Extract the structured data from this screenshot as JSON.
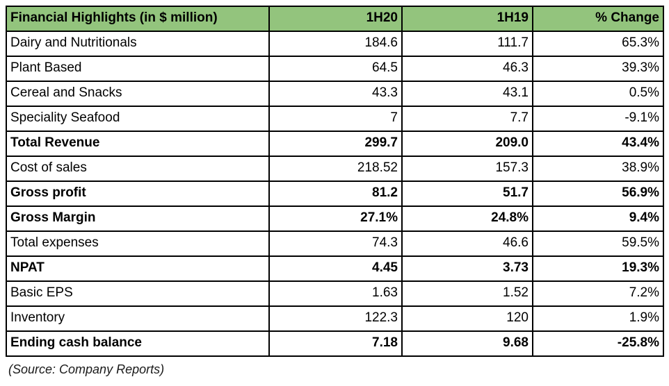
{
  "chart_data": {
    "type": "table",
    "title": "Financial Highlights (in $ million)",
    "columns": [
      "Financial Highlights (in $ million)",
      "1H20",
      "1H19",
      "% Change"
    ],
    "rows": [
      {
        "label": "Dairy and Nutritionals",
        "h1_2020": "184.6",
        "h1_2019": "111.7",
        "pct_change": "65.3%",
        "bold": false
      },
      {
        "label": "Plant Based",
        "h1_2020": "64.5",
        "h1_2019": "46.3",
        "pct_change": "39.3%",
        "bold": false
      },
      {
        "label": "Cereal and Snacks",
        "h1_2020": "43.3",
        "h1_2019": "43.1",
        "pct_change": "0.5%",
        "bold": false
      },
      {
        "label": "Speciality Seafood",
        "h1_2020": "7",
        "h1_2019": "7.7",
        "pct_change": "-9.1%",
        "bold": false
      },
      {
        "label": "Total Revenue",
        "h1_2020": "299.7",
        "h1_2019": "209.0",
        "pct_change": "43.4%",
        "bold": true
      },
      {
        "label": "Cost of sales",
        "h1_2020": "218.52",
        "h1_2019": "157.3",
        "pct_change": "38.9%",
        "bold": false
      },
      {
        "label": "Gross profit",
        "h1_2020": "81.2",
        "h1_2019": "51.7",
        "pct_change": "56.9%",
        "bold": true
      },
      {
        "label": "Gross Margin",
        "h1_2020": "27.1%",
        "h1_2019": "24.8%",
        "pct_change": "9.4%",
        "bold": true
      },
      {
        "label": "Total expenses",
        "h1_2020": "74.3",
        "h1_2019": "46.6",
        "pct_change": "59.5%",
        "bold": false
      },
      {
        "label": "NPAT",
        "h1_2020": "4.45",
        "h1_2019": "3.73",
        "pct_change": "19.3%",
        "bold": true
      },
      {
        "label": "Basic EPS",
        "h1_2020": "1.63",
        "h1_2019": "1.52",
        "pct_change": "7.2%",
        "bold": false
      },
      {
        "label": "Inventory",
        "h1_2020": "122.3",
        "h1_2019": "120",
        "pct_change": "1.9%",
        "bold": false
      },
      {
        "label": "Ending cash balance",
        "h1_2020": "7.18",
        "h1_2019": "9.68",
        "pct_change": "-25.8%",
        "bold": true
      }
    ]
  },
  "footer": {
    "source_note": "(Source: Company Reports)"
  },
  "colors": {
    "header_bg": "#93c47d",
    "border": "#000000",
    "text": "#000000",
    "background": "#ffffff"
  }
}
